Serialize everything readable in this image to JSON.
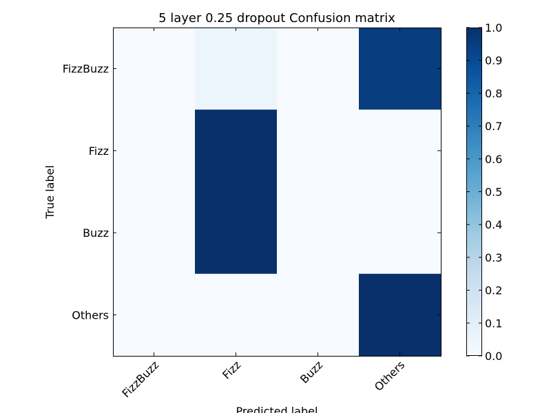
{
  "chart_data": {
    "type": "heatmap",
    "title": "5 layer 0.25 dropout Confusion matrix",
    "xlabel": "Predicted label",
    "ylabel": "True label",
    "x_categories": [
      "FizzBuzz",
      "Fizz",
      "Buzz",
      "Others"
    ],
    "y_categories": [
      "FizzBuzz",
      "Fizz",
      "Buzz",
      "Others"
    ],
    "values": [
      [
        0.0,
        0.05,
        0.0,
        0.95
      ],
      [
        0.0,
        1.0,
        0.0,
        0.0
      ],
      [
        0.0,
        1.0,
        0.0,
        0.0
      ],
      [
        0.0,
        0.0,
        0.0,
        1.0
      ]
    ],
    "colormap": "Blues",
    "colorbar": {
      "min": 0.0,
      "max": 1.0,
      "ticks": [
        "0.0",
        "0.1",
        "0.2",
        "0.3",
        "0.4",
        "0.5",
        "0.6",
        "0.7",
        "0.8",
        "0.9",
        "1.0"
      ]
    },
    "grid": false
  }
}
